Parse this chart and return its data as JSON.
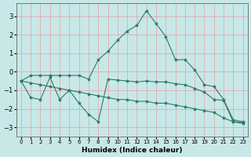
{
  "xlabel": "Humidex (Indice chaleur)",
  "xlim": [
    -0.5,
    23.5
  ],
  "ylim": [
    -3.5,
    3.7
  ],
  "yticks": [
    -3,
    -2,
    -1,
    0,
    1,
    2,
    3
  ],
  "xticks": [
    0,
    1,
    2,
    3,
    4,
    5,
    6,
    7,
    8,
    9,
    10,
    11,
    12,
    13,
    14,
    15,
    16,
    17,
    18,
    19,
    20,
    21,
    22,
    23
  ],
  "background_color": "#c8e8e8",
  "grid_color": "#e8a0a0",
  "line_color": "#2a7a6a",
  "line1_x": [
    0,
    1,
    2,
    3,
    4,
    5,
    6,
    7,
    8,
    9,
    10,
    11,
    12,
    13,
    14,
    15,
    16,
    17,
    18,
    19,
    20,
    21,
    22,
    23
  ],
  "line1_y": [
    -0.5,
    -0.6,
    -0.7,
    -0.8,
    -0.9,
    -1.0,
    -1.1,
    -1.2,
    -1.3,
    -1.4,
    -1.5,
    -1.5,
    -1.6,
    -1.6,
    -1.7,
    -1.7,
    -1.8,
    -1.9,
    -2.0,
    -2.1,
    -2.2,
    -2.5,
    -2.7,
    -2.8
  ],
  "line2_x": [
    0,
    1,
    2,
    3,
    4,
    5,
    6,
    7,
    8,
    9,
    10,
    11,
    12,
    13,
    14,
    15,
    16,
    17,
    18,
    19,
    20,
    21,
    22,
    23
  ],
  "line2_y": [
    -0.5,
    -1.4,
    -1.5,
    -0.3,
    -1.5,
    -1.0,
    -1.7,
    -2.3,
    -2.7,
    -0.4,
    -0.45,
    -0.5,
    -0.55,
    -0.5,
    -0.55,
    -0.55,
    -0.65,
    -0.7,
    -0.9,
    -1.1,
    -1.5,
    -1.55,
    -2.7,
    -2.75
  ],
  "line3_x": [
    0,
    1,
    2,
    3,
    4,
    5,
    6,
    7,
    8,
    9,
    10,
    11,
    12,
    13,
    14,
    15,
    16,
    17,
    18,
    19,
    20,
    21,
    22,
    23
  ],
  "line3_y": [
    -0.5,
    -0.2,
    -0.2,
    -0.2,
    -0.2,
    -0.2,
    -0.2,
    -0.4,
    0.65,
    1.1,
    1.7,
    2.2,
    2.5,
    3.3,
    2.6,
    1.9,
    0.65,
    0.65,
    0.1,
    -0.7,
    -0.8,
    -1.5,
    -2.6,
    -2.7
  ]
}
